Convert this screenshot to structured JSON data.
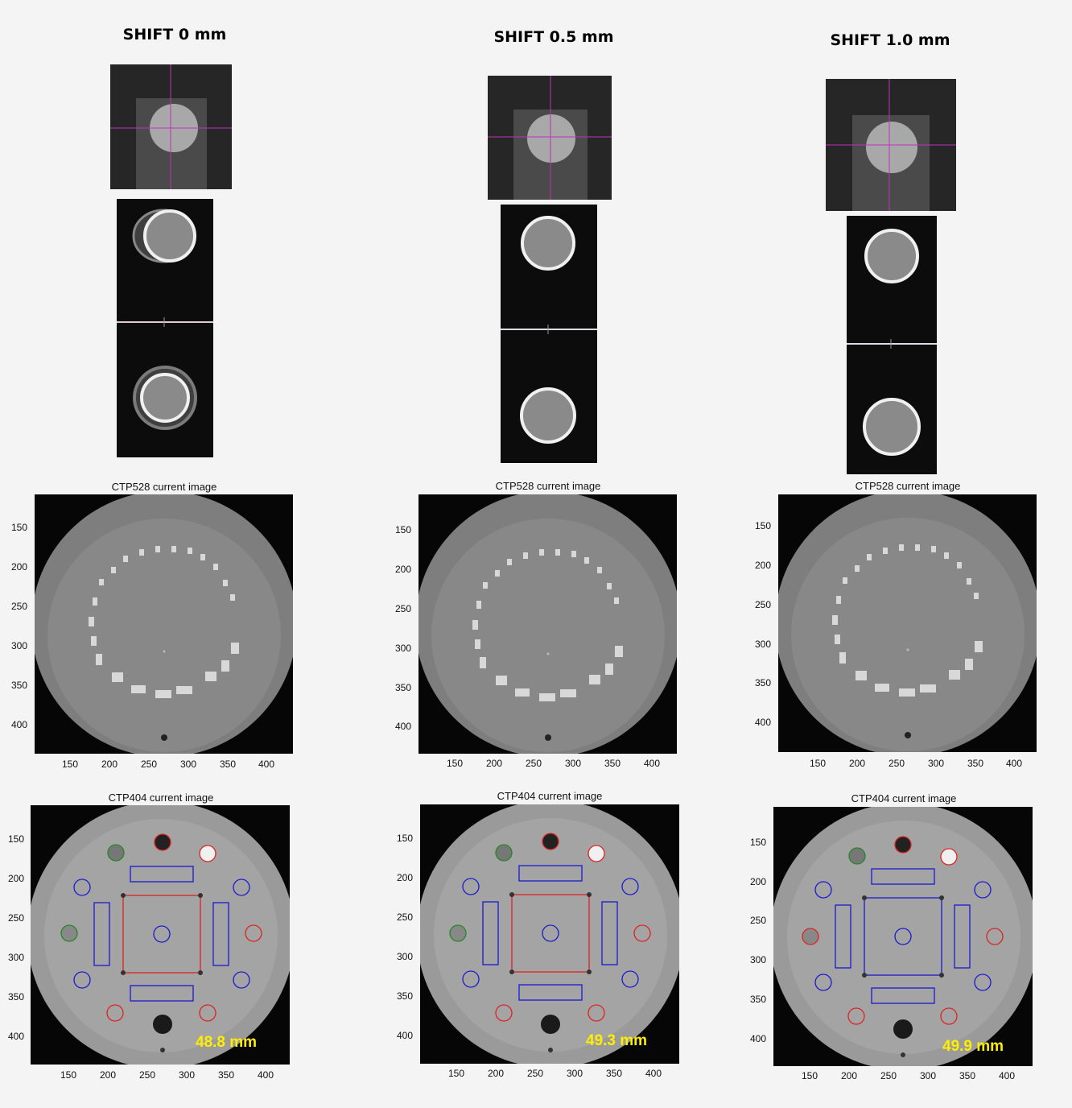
{
  "columns": [
    {
      "title": "SHIFT 0 mm",
      "ctp528_title": "CTP528 current image",
      "ctp404_title": "CTP404 current image",
      "measurement": "48.8 mm"
    },
    {
      "title": "SHIFT 0.5 mm",
      "ctp528_title": "CTP528 current image",
      "ctp404_title": "CTP404 current image",
      "measurement": "49.3 mm"
    },
    {
      "title": "SHIFT 1.0 mm",
      "ctp528_title": "CTP528 current image",
      "ctp404_title": "CTP404 current image",
      "measurement": "49.9 mm"
    }
  ],
  "axes": {
    "x_ticks": [
      "150",
      "200",
      "250",
      "300",
      "350",
      "400"
    ],
    "ctp528_y_ticks": [
      "150",
      "200",
      "250",
      "300",
      "350",
      "400"
    ],
    "ctp404_y_ticks_col1": [
      "150",
      "200",
      "250",
      "300",
      "350",
      "400"
    ],
    "ctp404_y_ticks": [
      "150",
      "200",
      "250",
      "300",
      "350",
      "400"
    ]
  },
  "colors": {
    "background": "#f4f4f4",
    "crosshair": "#c030c0",
    "roi_blue": "#1a1acc",
    "roi_red": "#dd2222",
    "roi_green": "#228822",
    "measurement": "#ffee00"
  }
}
